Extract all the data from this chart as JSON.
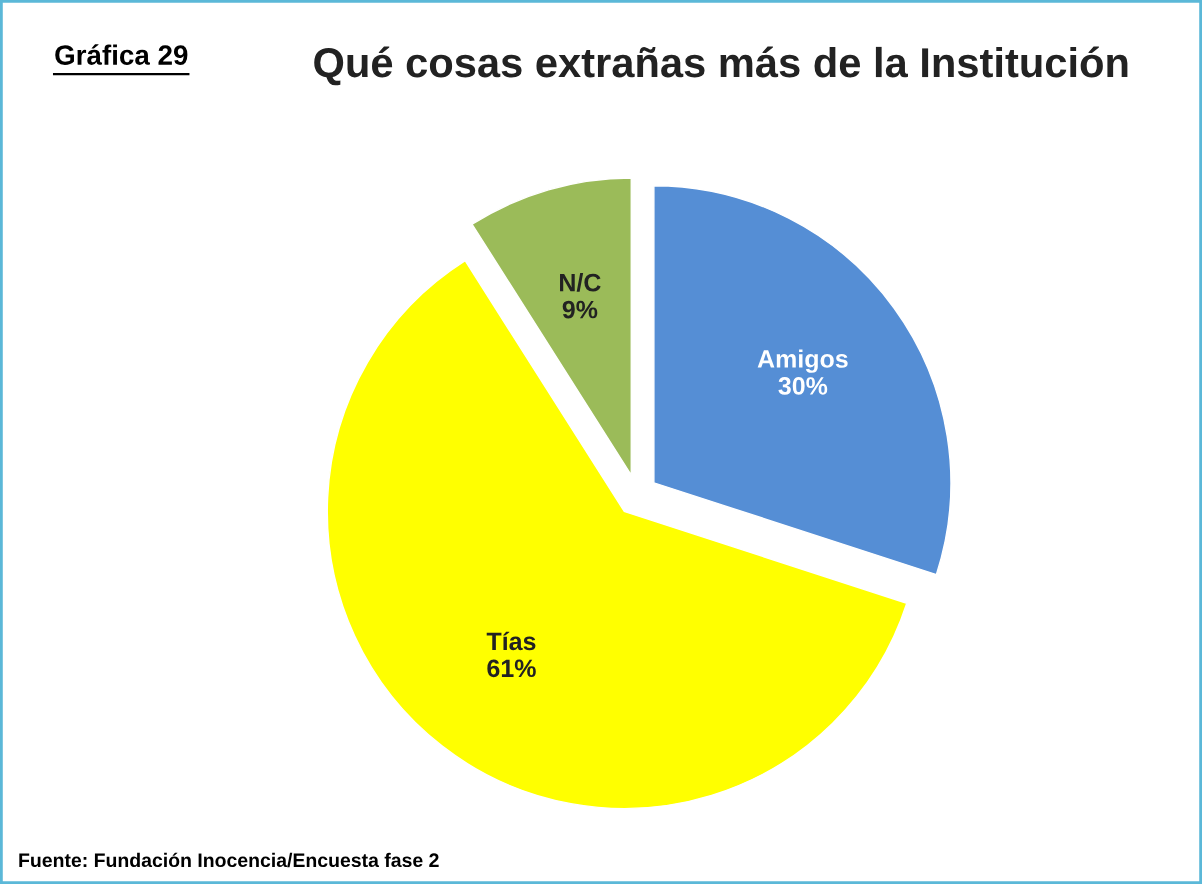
{
  "chart_data": {
    "type": "pie",
    "title": "Qué cosas extrañas más de la Institución",
    "categories": [
      "Amigos",
      "Tías",
      "N/C"
    ],
    "values": [
      30,
      61,
      9
    ],
    "colors": [
      "#558ed5",
      "#ffff00",
      "#9bbb59"
    ],
    "value_labels": [
      "30%",
      "61%",
      "9%"
    ],
    "legend": false,
    "annotations": [
      "Gráfica 29",
      "Fuente: Fundación Inocencia/Encuesta fase 2"
    ]
  }
}
